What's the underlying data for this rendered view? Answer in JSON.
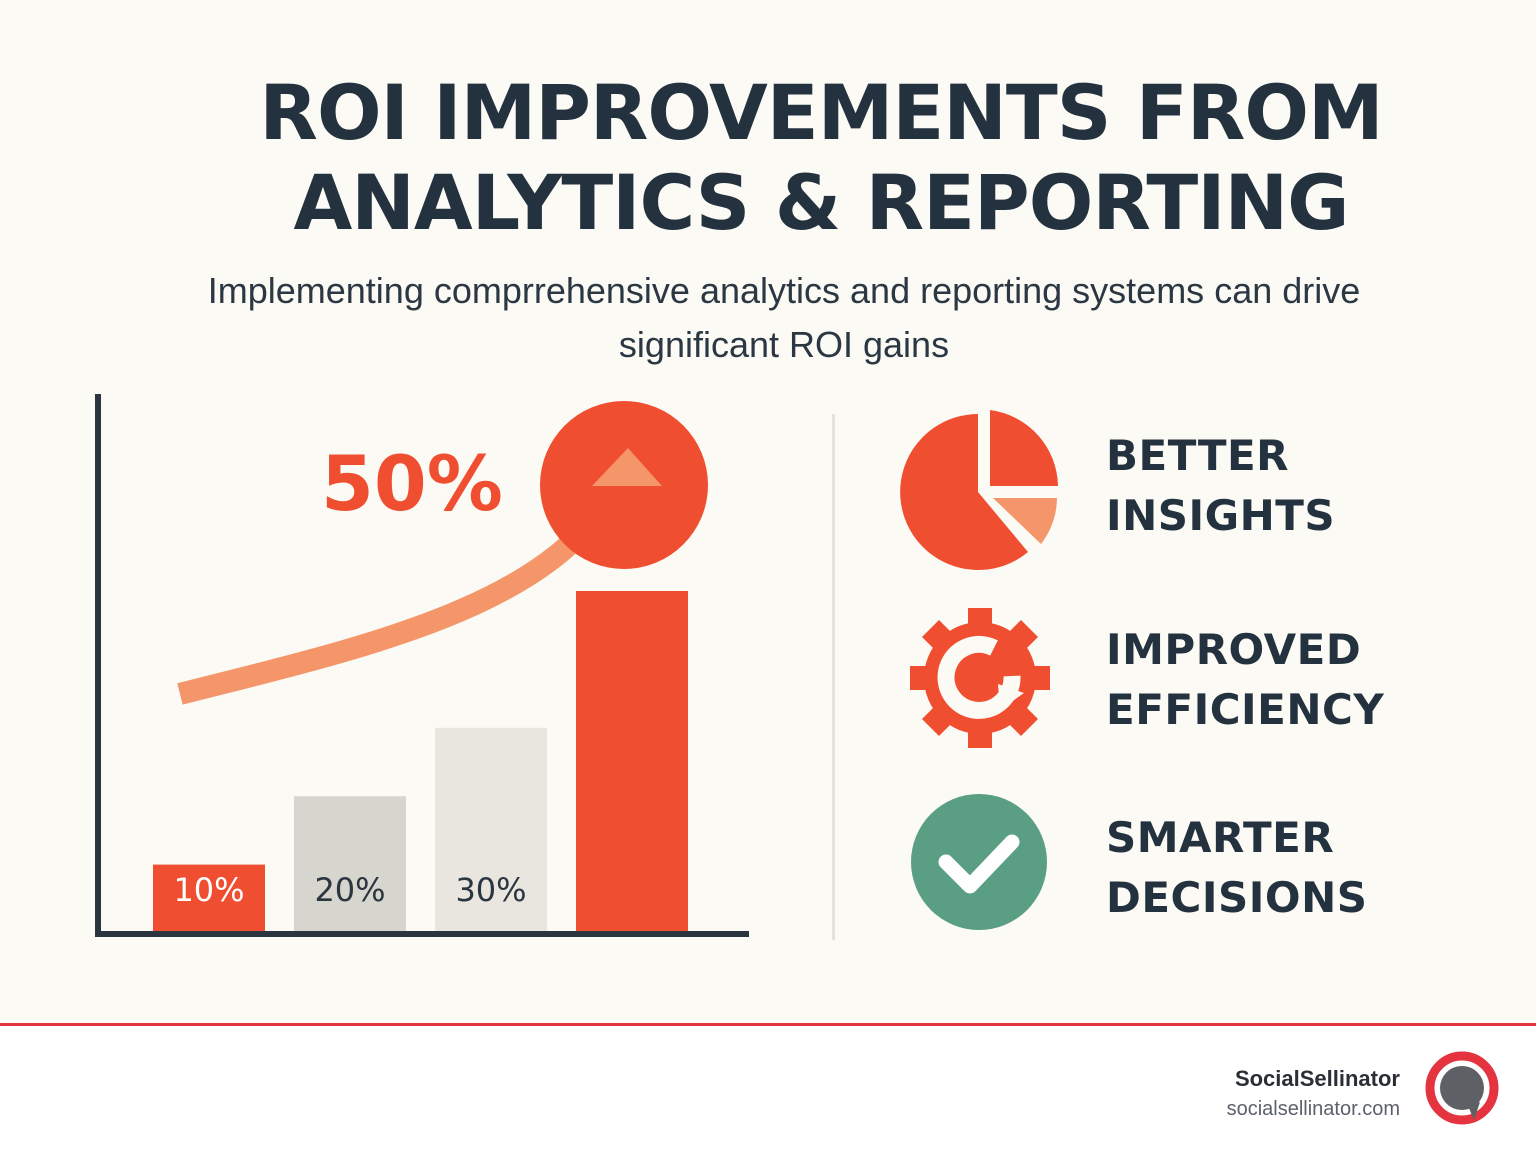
{
  "title_lines": [
    "ROI IMPROVEMENTS FROM",
    "ANALYTICS & REPORTING"
  ],
  "subtitle_lines": [
    "Implementing comprrehensive analytics and reporting systems can drive",
    "significant ROI gains"
  ],
  "chart_data": {
    "type": "bar",
    "categories": [
      "",
      "",
      "",
      ""
    ],
    "values": [
      10,
      20,
      30,
      50
    ],
    "value_labels": [
      "10%",
      "20%",
      "30%",
      ""
    ],
    "bar_colors": [
      "#f04e30",
      "#d6d5ce",
      "#e8e6df",
      "#f04e30"
    ],
    "value_label_colors": [
      "#ffffff",
      "#2a3540",
      "#2a3540",
      "#ffffff"
    ],
    "highlight_label": "50%",
    "highlight_color": "#f04e30",
    "trend_arrow_color": "#f5956a",
    "axis_color": "#2a3540",
    "ylim": [
      0,
      50
    ]
  },
  "benefits": [
    {
      "icon": "pie-chart-icon",
      "lines": [
        "BETTER",
        "INSIGHTS"
      ]
    },
    {
      "icon": "gear-cycle-icon",
      "lines": [
        "IMPROVED",
        "EFFICIENCY"
      ]
    },
    {
      "icon": "check-circle-icon",
      "lines": [
        "SMARTER",
        "DECISIONS"
      ]
    }
  ],
  "colors": {
    "accent": "#f04e30",
    "accent_light": "#f5956a",
    "success": "#5a9e83",
    "text_dark": "#24323f",
    "footer_rule": "#e4343f"
  },
  "footer": {
    "brand_name": "SocialSellinator",
    "brand_url": "socialsellinator.com"
  }
}
